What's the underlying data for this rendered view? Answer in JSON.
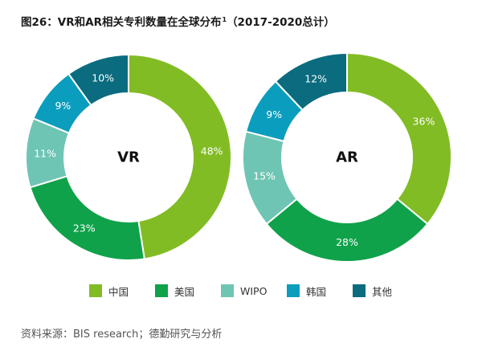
{
  "title": {
    "text": "图26：VR和AR相关专利数量在全球分布",
    "superscript": "1",
    "suffix": "（2017-2020总计）"
  },
  "colors": {
    "中国": "#82bc24",
    "美国": "#10a24a",
    "WIPO": "#6fc5b3",
    "韩国": "#0b9dbd",
    "其他": "#0b6b7f"
  },
  "chart_data": [
    {
      "type": "pie",
      "center_label": "VR",
      "categories": [
        "中国",
        "美国",
        "WIPO",
        "韩国",
        "其他"
      ],
      "values": [
        48,
        23,
        11,
        9,
        10
      ],
      "value_labels": [
        "48%",
        "23%",
        "11%",
        "9%",
        "10%"
      ],
      "donut": true
    },
    {
      "type": "pie",
      "center_label": "AR",
      "categories": [
        "中国",
        "美国",
        "WIPO",
        "韩国",
        "其他"
      ],
      "values": [
        36,
        28,
        15,
        9,
        12
      ],
      "value_labels": [
        "36%",
        "28%",
        "15%",
        "9%",
        "12%"
      ],
      "donut": true
    }
  ],
  "legend": {
    "items": [
      "中国",
      "美国",
      "WIPO",
      "韩国",
      "其他"
    ],
    "placement": "bottom"
  },
  "source": "资料来源：BIS research；德勤研究与分析"
}
